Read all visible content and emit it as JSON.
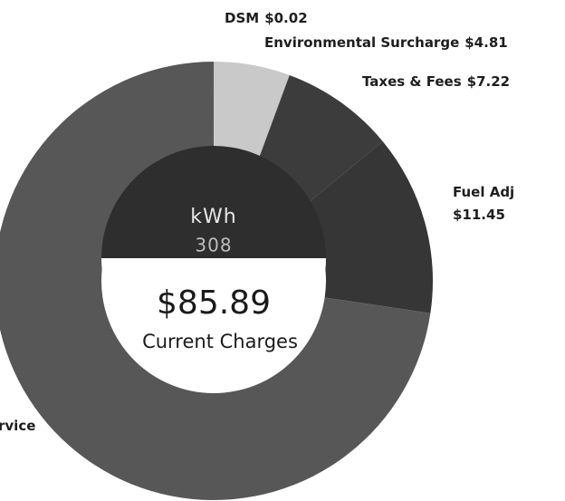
{
  "chart_data": {
    "type": "donut",
    "categories": [
      "DSM",
      "Environmental Surcharge",
      "Taxes & Fees",
      "Fuel Adj",
      "rvice"
    ],
    "values": [
      0.02,
      4.81,
      7.22,
      11.45,
      62.39
    ],
    "value_labels": [
      "$0.02",
      "$4.81",
      "$7.22",
      "$11.45",
      null
    ],
    "colors": [
      "#9a9a9a",
      "#c9c9c9",
      "#3c3c3c",
      "#363636",
      "#575757"
    ],
    "center": {
      "label": "kWh",
      "value": 308,
      "total": "$85.89",
      "caption": "Current Charges"
    }
  }
}
